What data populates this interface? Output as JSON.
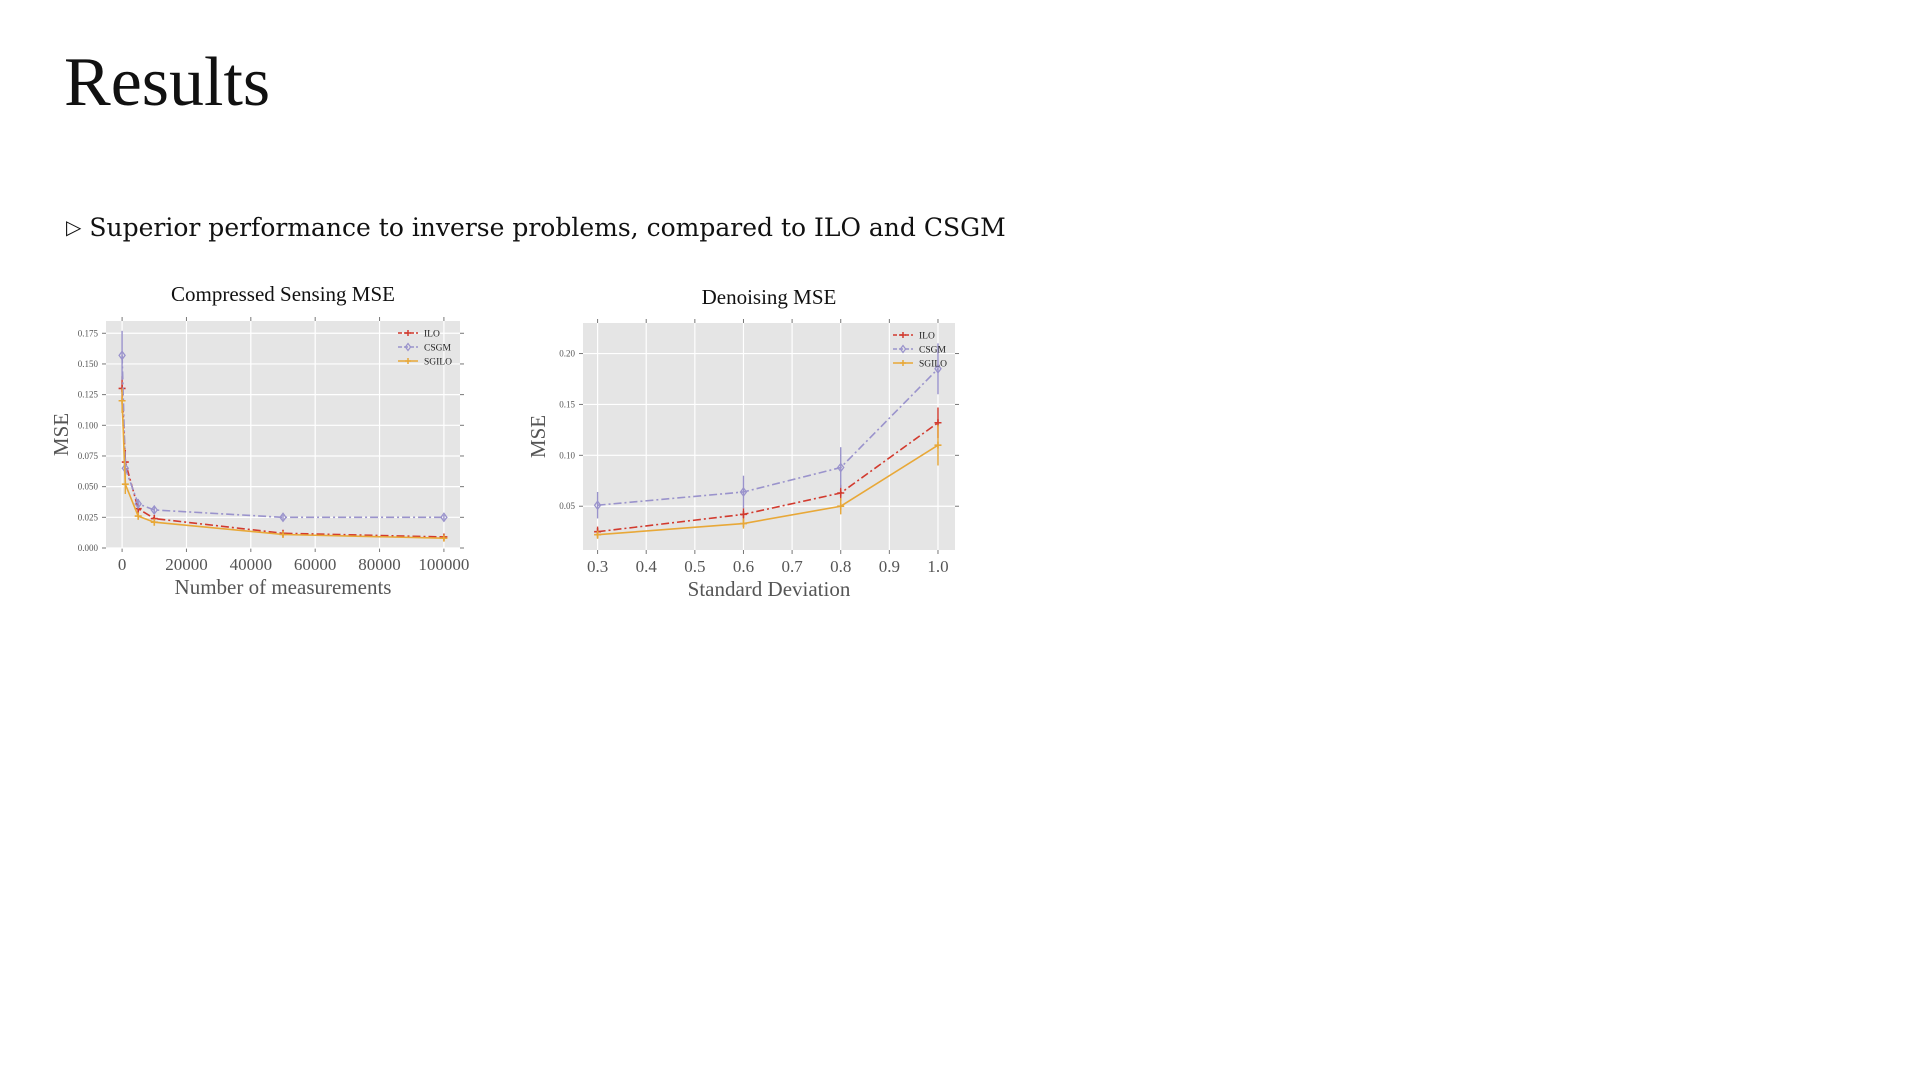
{
  "slide": {
    "title": "Results",
    "bullet_marker": "▷",
    "bullet": "Superior performance to inverse problems, compared to ILO and CSGM"
  },
  "colors": {
    "ILO": "#d23a2e",
    "CSGM": "#9a93cc",
    "SGILO": "#e8a838",
    "plot_bg": "#e5e5e5",
    "grid": "#ffffff"
  },
  "chart_data": [
    {
      "type": "line",
      "title": "Compressed Sensing MSE",
      "xlabel": "Number of measurements",
      "ylabel": "MSE",
      "xlim": [
        -5000,
        105000
      ],
      "ylim": [
        0,
        0.185
      ],
      "xticks": [
        0,
        20000,
        40000,
        60000,
        80000,
        100000
      ],
      "yticks": [
        0.0,
        0.025,
        0.05,
        0.075,
        0.1,
        0.125,
        0.15,
        0.175
      ],
      "ytick_labels": [
        "0.000",
        "0.025",
        "0.050",
        "0.075",
        "0.100",
        "0.125",
        "0.150",
        "0.175"
      ],
      "grid": true,
      "legend_position": "top-right",
      "series": [
        {
          "name": "ILO",
          "marker": "+",
          "dash": "8,3,2,3",
          "x": [
            0,
            1000,
            5000,
            10000,
            50000,
            100000
          ],
          "y": [
            0.13,
            0.07,
            0.032,
            0.024,
            0.012,
            0.009
          ],
          "err": [
            0.01,
            0.01,
            0.004,
            0.003,
            0.002,
            0.001
          ]
        },
        {
          "name": "CSGM",
          "marker": "d",
          "dash": "8,3,2,3",
          "x": [
            0,
            1000,
            5000,
            10000,
            50000,
            100000
          ],
          "y": [
            0.157,
            0.065,
            0.036,
            0.031,
            0.025,
            0.025
          ],
          "err": [
            0.02,
            0.008,
            0.004,
            0.003,
            0.002,
            0.002
          ]
        },
        {
          "name": "SGILO",
          "marker": "+",
          "dash": "",
          "x": [
            0,
            1000,
            5000,
            10000,
            50000,
            100000
          ],
          "y": [
            0.12,
            0.052,
            0.026,
            0.021,
            0.011,
            0.008
          ],
          "err": [
            0.01,
            0.008,
            0.003,
            0.002,
            0.001,
            0.001
          ]
        }
      ]
    },
    {
      "type": "line",
      "title": "Denoising MSE",
      "xlabel": "Standard Deviation",
      "ylabel": "MSE",
      "xlim": [
        0.27,
        1.035
      ],
      "ylim": [
        0.007,
        0.23
      ],
      "xticks": [
        0.3,
        0.4,
        0.5,
        0.6,
        0.7,
        0.8,
        0.9,
        1.0
      ],
      "xtick_labels": [
        "0.3",
        "0.4",
        "0.5",
        "0.6",
        "0.7",
        "0.8",
        "0.9",
        "1.0"
      ],
      "yticks": [
        0.05,
        0.1,
        0.15,
        0.2
      ],
      "ytick_labels": [
        "0.05",
        "0.10",
        "0.15",
        "0.20"
      ],
      "grid": true,
      "legend_position": "top-right",
      "series": [
        {
          "name": "ILO",
          "marker": "+",
          "dash": "8,3,2,3",
          "x": [
            0.3,
            0.6,
            0.8,
            1.0
          ],
          "y": [
            0.025,
            0.042,
            0.063,
            0.132
          ],
          "err": [
            0.005,
            0.006,
            0.008,
            0.015
          ]
        },
        {
          "name": "CSGM",
          "marker": "d",
          "dash": "8,3,2,3",
          "x": [
            0.3,
            0.6,
            0.8,
            1.0
          ],
          "y": [
            0.051,
            0.064,
            0.088,
            0.185
          ],
          "err": [
            0.013,
            0.016,
            0.02,
            0.025
          ]
        },
        {
          "name": "SGILO",
          "marker": "+",
          "dash": "",
          "x": [
            0.3,
            0.6,
            0.8,
            1.0
          ],
          "y": [
            0.022,
            0.033,
            0.05,
            0.11
          ],
          "err": [
            0.004,
            0.005,
            0.008,
            0.02
          ]
        }
      ]
    }
  ]
}
